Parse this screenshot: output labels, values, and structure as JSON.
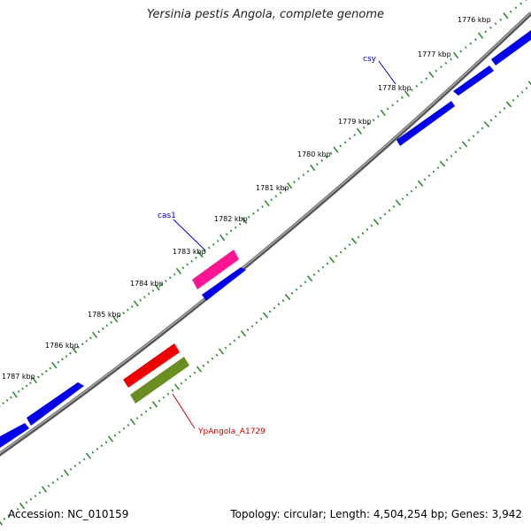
{
  "title": "Yersinia pestis Angola, complete genome",
  "footer": {
    "accession": "Accession: NC_010159",
    "summary": "Topology: circular; Length: 4,504,254 bp; Genes: 3,942"
  },
  "kbp_ticks": [
    "1776 kbp",
    "1777 kbp",
    "1778 kbp",
    "1779 kbp",
    "1780 kbp",
    "1781 kbp",
    "1782 kbp",
    "1783 kbp",
    "1784 kbp",
    "1785 kbp",
    "1786 kbp",
    "1787 kbp"
  ],
  "gene_labels": {
    "csy": "csy",
    "cas1": "cas1",
    "ypangola": "YpAngola_A1729"
  },
  "colors": {
    "backbone": "#888888",
    "tick": "#2e8b2e",
    "gene_forward": "#0000ee",
    "gene_cas1": "#ff1493",
    "gene_red": "#ee0000",
    "gene_olive": "#6b8e23",
    "label_blue": "#0000cc",
    "label_red": "#cc0000"
  }
}
